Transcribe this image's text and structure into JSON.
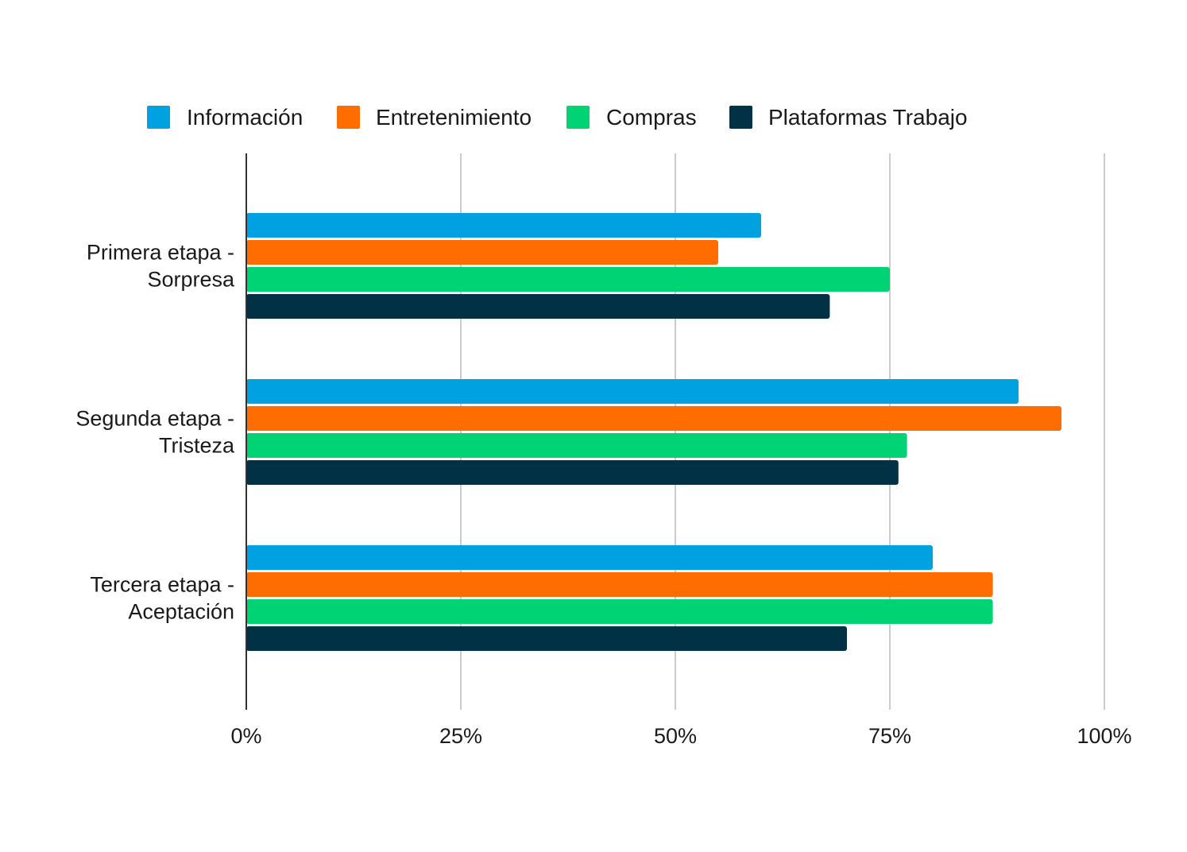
{
  "chart_data": {
    "type": "bar",
    "orientation": "horizontal",
    "categories": [
      [
        "Primera etapa -",
        "Sorpresa"
      ],
      [
        "Segunda etapa -",
        "Tristeza"
      ],
      [
        "Tercera etapa -",
        "Aceptación"
      ]
    ],
    "series": [
      {
        "name": "Información",
        "color": "#00A1E0",
        "values": [
          60,
          90,
          80
        ]
      },
      {
        "name": "Entretenimiento",
        "color": "#FF6D00",
        "values": [
          55,
          95,
          87
        ]
      },
      {
        "name": "Compras",
        "color": "#00D374",
        "values": [
          75,
          77,
          87
        ]
      },
      {
        "name": "Plataformas Trabajo",
        "color": "#003144",
        "values": [
          68,
          76,
          70
        ]
      }
    ],
    "xlim": [
      0,
      100
    ],
    "ticks": [
      0,
      25,
      50,
      75,
      100
    ],
    "tick_labels": [
      "0%",
      "25%",
      "50%",
      "75%",
      "100%"
    ],
    "grid": true,
    "legend_position": "top",
    "title": "",
    "xlabel": "",
    "ylabel": ""
  }
}
